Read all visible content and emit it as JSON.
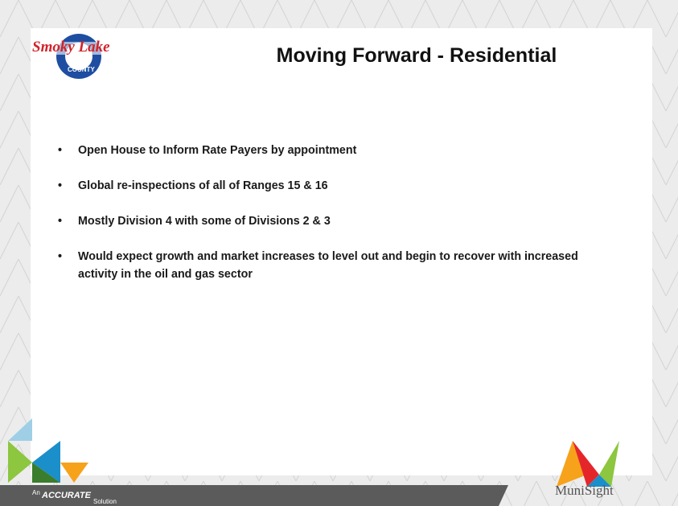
{
  "slide": {
    "title": "Moving Forward - Residential",
    "bullets": [
      "Open House to Inform Rate Payers by appointment",
      "Global re-inspections of all of Ranges 15 & 16",
      "Mostly Division 4 with some of Divisions 2 & 3",
      "Would expect growth and market increases to level out and begin to recover with increased activity in the oil and gas sector"
    ],
    "logo": {
      "name": "Smoky Lake",
      "sub": "COUNTY"
    },
    "footer": {
      "prefix": "An",
      "brand": "ACCURATE",
      "suffix": "Solution",
      "partner": "MuniSight"
    }
  }
}
